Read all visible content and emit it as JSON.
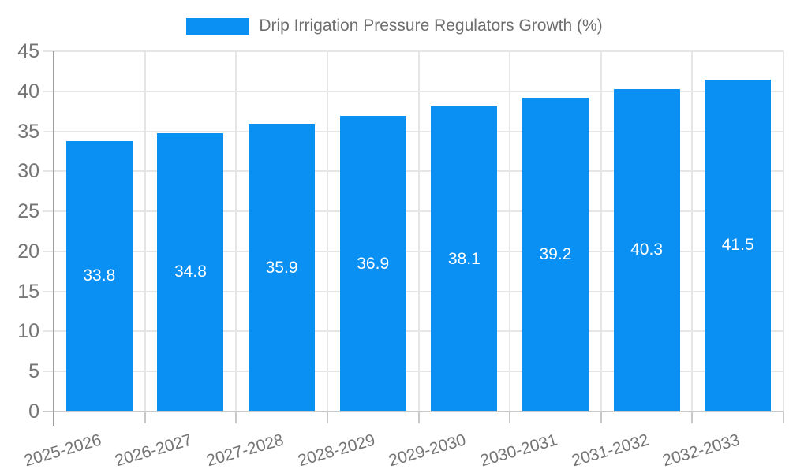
{
  "chart_data": {
    "type": "bar",
    "legend_label": "Drip Irrigation Pressure Regulators Growth (%)",
    "legend_position": "top",
    "categories": [
      "2025-2026",
      "2026-2027",
      "2027-2028",
      "2028-2029",
      "2029-2030",
      "2030-2031",
      "2031-2032",
      "2032-2033"
    ],
    "values": [
      33.8,
      34.8,
      35.9,
      36.9,
      38.1,
      39.2,
      40.3,
      41.5
    ],
    "value_labels": [
      "33.8",
      "34.8",
      "35.9",
      "36.9",
      "38.1",
      "39.2",
      "40.3",
      "41.5"
    ],
    "title": "",
    "xlabel": "",
    "ylabel": "",
    "ylim": [
      0,
      45
    ],
    "y_ticks": [
      0,
      5,
      10,
      15,
      20,
      25,
      30,
      35,
      40,
      45
    ],
    "grid": true,
    "legend_marker": "rectangle",
    "colors": {
      "bar": "#0a90f2",
      "grid_line": "#e6e6e6",
      "baseline": "#c9c9c9",
      "axis_line": "#9e9e9e",
      "axis_text": "#757575",
      "legend_text": "#6e6e6e",
      "value_text": "#ffffff",
      "background": "#ffffff"
    }
  }
}
